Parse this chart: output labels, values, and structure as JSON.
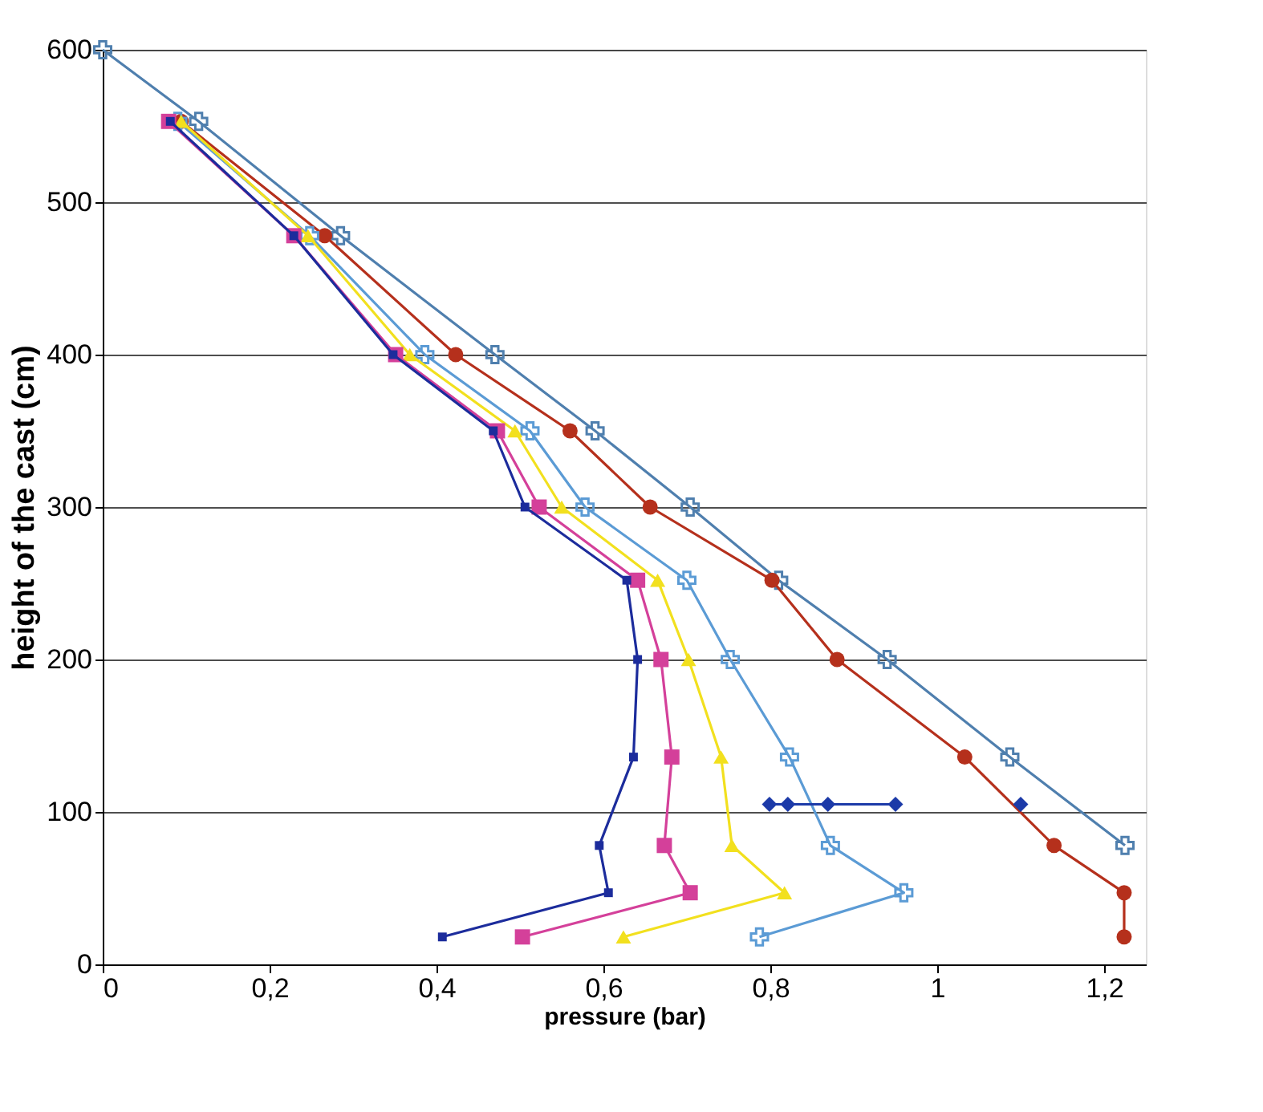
{
  "chart_data": {
    "type": "line",
    "xlabel": "pressure (bar)",
    "ylabel": "height of the cast (cm)",
    "xlim": [
      0,
      1.25
    ],
    "ylim": [
      0,
      600
    ],
    "xticks": [
      0,
      {
        "value": 0.2,
        "label": "0,2"
      },
      {
        "value": 0.4,
        "label": "0,4"
      },
      {
        "value": 0.6,
        "label": "0,6"
      },
      {
        "value": 0.8,
        "label": "0,8"
      },
      1,
      {
        "value": 1.2,
        "label": "1,2"
      }
    ],
    "yticks": [
      0,
      100,
      200,
      300,
      400,
      500,
      600
    ],
    "grid": "y",
    "line_style": "solid",
    "series": [
      {
        "color": "#4f7fae",
        "marker": "cross",
        "x": [
          0,
          0.115,
          0.285,
          0.47,
          0.59,
          0.704,
          0.81,
          0.94,
          1.087,
          1.225
        ],
        "values": [
          600,
          553,
          478,
          400,
          350,
          300,
          252,
          200,
          136,
          78
        ]
      },
      {
        "color": "#b5301c",
        "marker": "circle",
        "x": [
          0.094,
          0.266,
          0.423,
          0.56,
          0.656,
          0.802,
          0.88,
          1.033,
          1.14,
          1.224,
          1.224
        ],
        "values": [
          553,
          478,
          400,
          350,
          300,
          252,
          200,
          136,
          78,
          47,
          18
        ]
      },
      {
        "color": "#5b9bd5",
        "marker": "cross",
        "x": [
          0.09,
          0.248,
          0.386,
          0.512,
          0.578,
          0.7,
          0.752,
          0.823,
          0.872,
          0.96,
          0.787
        ],
        "values": [
          553,
          478,
          400,
          350,
          300,
          252,
          200,
          136,
          78,
          47,
          18
        ]
      },
      {
        "color": "#f2e01e",
        "marker": "triangle",
        "x": [
          0.094,
          0.246,
          0.368,
          0.494,
          0.55,
          0.665,
          0.702,
          0.741,
          0.754,
          0.817,
          0.624
        ],
        "values": [
          553,
          478,
          400,
          350,
          300,
          252,
          200,
          136,
          78,
          47,
          18
        ]
      },
      {
        "color": "#d4409a",
        "marker": "square",
        "x": [
          0.079,
          0.229,
          0.351,
          0.473,
          0.523,
          0.641,
          0.669,
          0.682,
          0.673,
          0.704,
          0.503
        ],
        "values": [
          553,
          478,
          400,
          350,
          300,
          252,
          200,
          136,
          78,
          47,
          18
        ]
      },
      {
        "color": "#1c2c9c",
        "marker": "square",
        "x": [
          0.081,
          0.229,
          0.348,
          0.468,
          0.506,
          0.628,
          0.641,
          0.636,
          0.595,
          0.606,
          0.407
        ],
        "values": [
          553,
          478,
          400,
          350,
          300,
          252,
          200,
          136,
          78,
          47,
          18
        ]
      },
      {
        "color": "#1c3aa8",
        "marker": "diamond",
        "x": [
          0.799,
          0.821,
          0.869,
          0.95
        ],
        "values": [
          105,
          105,
          105,
          105
        ]
      },
      {
        "type": "scatter",
        "color": "#1c3aa8",
        "marker": "diamond",
        "x": [
          1.1
        ],
        "values": [
          105
        ]
      }
    ]
  }
}
